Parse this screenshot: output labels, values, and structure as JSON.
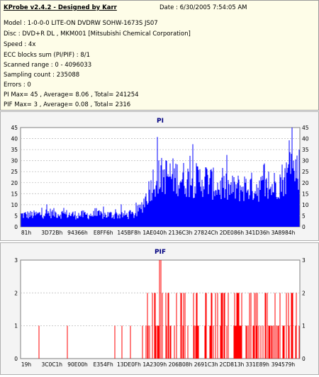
{
  "header": {
    "title": "KProbe v2.4.2 - Designed by Karr",
    "date": "Date : 6/30/2005 7:54:05 AM"
  },
  "info_lines": [
    "Model : 1-0-0-0 LITE-ON DVDRW SOHW-1673S JS07",
    "Disc : DVD+R DL , MKM001 [Mitsubishi Chemical Corporation]",
    "Speed : 4x",
    "ECC blocks sum (PI/PIF) : 8/1",
    "Scanned range : 0 - 4096033",
    "Sampling count : 235088",
    "Errors : 0",
    "PI Max= 45 , Average= 8.06 , Total= 241254",
    "PIF Max= 3 , Average= 0.08 , Total= 2316"
  ],
  "colors": {
    "pi": "#0000ff",
    "pif": "#ff0000",
    "grid": "#c0c0c0",
    "title": "#000080"
  },
  "chart_data": [
    {
      "type": "bar",
      "title": "PI",
      "ylim": [
        0,
        45
      ],
      "y_ticks": [
        "0",
        "5",
        "10",
        "15",
        "20",
        "25",
        "30",
        "35",
        "40",
        "45"
      ],
      "x_tick_labels": [
        "81h",
        "3D72Bh",
        "94366h",
        "E8FF6h",
        "145BF8h",
        "1AE040h",
        "2136C3h",
        "27824Ch",
        "2DE086h",
        "341D36h",
        "3A8984h"
      ],
      "x_range": [
        0,
        4096033
      ],
      "series_profile": [
        {
          "x": 0,
          "value": 6
        },
        {
          "x": 200000,
          "value": 6
        },
        {
          "x": 400000,
          "value": 7
        },
        {
          "x": 800000,
          "value": 6
        },
        {
          "x": 1200000,
          "value": 6
        },
        {
          "x": 1650000,
          "value": 6
        },
        {
          "x": 1750000,
          "value": 9
        },
        {
          "x": 1850000,
          "value": 16
        },
        {
          "x": 1950000,
          "value": 24
        },
        {
          "x": 2100000,
          "value": 26
        },
        {
          "x": 2300000,
          "value": 25
        },
        {
          "x": 2500000,
          "value": 23
        },
        {
          "x": 2700000,
          "value": 24
        },
        {
          "x": 2900000,
          "value": 20
        },
        {
          "x": 3100000,
          "value": 19
        },
        {
          "x": 3300000,
          "value": 20
        },
        {
          "x": 3500000,
          "value": 20
        },
        {
          "x": 3650000,
          "value": 19
        },
        {
          "x": 3800000,
          "value": 23
        },
        {
          "x": 3950000,
          "value": 27
        },
        {
          "x": 4096033,
          "value": 30
        }
      ],
      "max": 45
    },
    {
      "type": "bar",
      "title": "PIF",
      "ylim": [
        0,
        3
      ],
      "y_ticks": [
        "0",
        "1",
        "2",
        "3"
      ],
      "x_tick_labels": [
        "19h",
        "3C0C1h",
        "90E00h",
        "E354Fh",
        "13DE0Fh",
        "1A2309h",
        "206B08h",
        "2691C3h",
        "2CD813h",
        "331E89h",
        "394579h"
      ],
      "x_range": [
        0,
        4096033
      ],
      "max": 3
    }
  ]
}
